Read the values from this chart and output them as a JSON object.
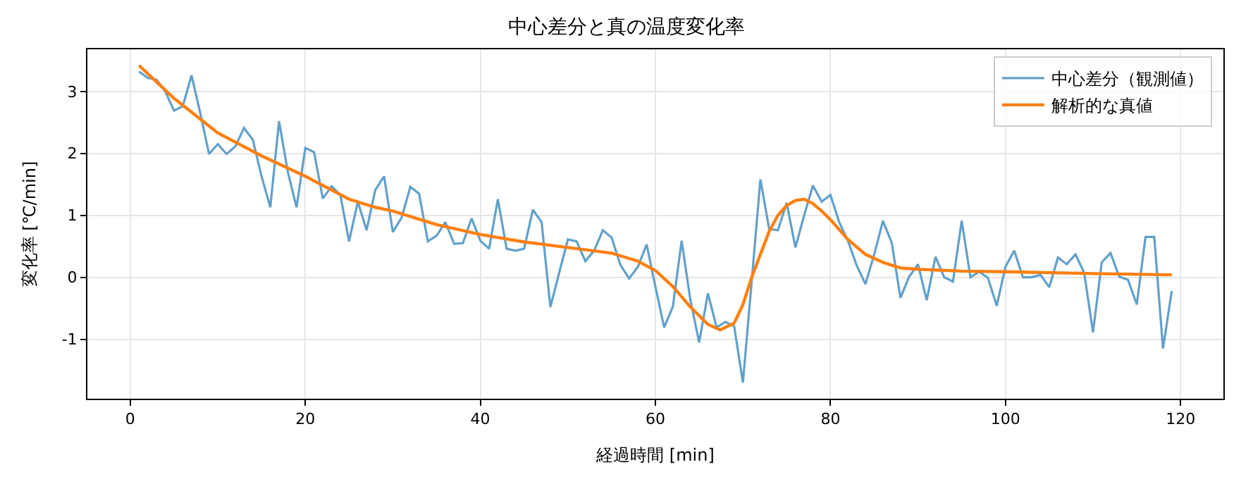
{
  "chart_data": {
    "type": "line",
    "title": "中心差分と真の温度変化率",
    "xlabel": "経過時間 [min]",
    "ylabel": "変化率 [℃/min]",
    "xlim": [
      -4.9,
      124.9
    ],
    "xticks": [
      0,
      20,
      40,
      60,
      80,
      100,
      120
    ],
    "ylim": [
      -1.96,
      3.68
    ],
    "yticks": [
      -1,
      0,
      1,
      2,
      3
    ],
    "grid": true,
    "legend": "top right",
    "series": [
      {
        "name": "中心差分（観測値）",
        "color": "#62a0cb",
        "x": [
          1,
          2,
          3,
          4,
          5,
          6,
          7,
          8,
          9,
          10,
          11,
          12,
          13,
          14,
          15,
          16,
          17,
          18,
          19,
          20,
          21,
          22,
          23,
          24,
          25,
          26,
          27,
          28,
          29,
          30,
          31,
          32,
          33,
          34,
          35,
          36,
          37,
          38,
          39,
          40,
          41,
          42,
          43,
          44,
          45,
          46,
          47,
          48,
          49,
          50,
          51,
          52,
          53,
          54,
          55,
          56,
          57,
          58,
          59,
          60,
          61,
          62,
          63,
          64,
          65,
          66,
          67,
          68,
          69,
          70,
          71,
          72,
          73,
          74,
          75,
          76,
          77,
          78,
          79,
          80,
          81,
          82,
          83,
          84,
          85,
          86,
          87,
          88,
          89,
          90,
          91,
          92,
          93,
          94,
          95,
          96,
          97,
          98,
          99,
          100,
          101,
          102,
          103,
          104,
          105,
          106,
          107,
          108,
          109,
          110,
          111,
          112,
          113,
          114,
          115,
          116,
          117,
          118,
          119
        ],
        "values": [
          3.32,
          3.22,
          3.19,
          3.0,
          2.69,
          2.76,
          3.26,
          2.65,
          1.99,
          2.15,
          1.99,
          2.11,
          2.41,
          2.22,
          1.63,
          1.13,
          2.52,
          1.7,
          1.13,
          2.09,
          2.02,
          1.27,
          1.47,
          1.33,
          0.58,
          1.22,
          0.76,
          1.41,
          1.63,
          0.73,
          0.96,
          1.46,
          1.35,
          0.58,
          0.67,
          0.89,
          0.54,
          0.55,
          0.95,
          0.59,
          0.46,
          1.26,
          0.46,
          0.43,
          0.46,
          1.09,
          0.89,
          -0.48,
          0.07,
          0.61,
          0.58,
          0.26,
          0.43,
          0.76,
          0.64,
          0.2,
          -0.02,
          0.17,
          0.53,
          -0.15,
          -0.81,
          -0.47,
          0.59,
          -0.37,
          -1.05,
          -0.26,
          -0.81,
          -0.72,
          -0.79,
          -1.7,
          -0.07,
          1.58,
          0.78,
          0.76,
          1.2,
          0.48,
          1.0,
          1.48,
          1.22,
          1.33,
          0.89,
          0.59,
          0.19,
          -0.11,
          0.37,
          0.91,
          0.56,
          -0.33,
          0.01,
          0.21,
          -0.37,
          0.33,
          0.0,
          -0.07,
          0.91,
          0.0,
          0.09,
          -0.01,
          -0.46,
          0.17,
          0.43,
          0.0,
          0.0,
          0.04,
          -0.16,
          0.32,
          0.21,
          0.37,
          0.07,
          -0.89,
          0.24,
          0.39,
          0.01,
          -0.04,
          -0.44,
          0.65,
          0.65,
          -1.15,
          -0.22
        ]
      },
      {
        "name": "解析的な真値",
        "color": "#ff7f0e",
        "x": [
          1,
          5,
          10,
          15,
          20,
          25,
          28,
          30,
          35,
          40,
          45,
          50,
          55,
          58,
          60,
          62,
          64,
          66,
          67.4,
          69,
          70,
          71,
          72,
          73,
          74,
          75,
          76,
          77,
          78,
          79,
          80,
          82,
          84,
          86,
          88,
          90,
          95,
          100,
          110,
          119
        ],
        "values": [
          3.42,
          2.89,
          2.33,
          1.96,
          1.63,
          1.26,
          1.13,
          1.07,
          0.85,
          0.69,
          0.57,
          0.48,
          0.39,
          0.26,
          0.11,
          -0.15,
          -0.48,
          -0.76,
          -0.85,
          -0.74,
          -0.44,
          0.0,
          0.37,
          0.74,
          1.0,
          1.16,
          1.24,
          1.26,
          1.19,
          1.07,
          0.93,
          0.61,
          0.37,
          0.24,
          0.15,
          0.13,
          0.1,
          0.09,
          0.06,
          0.04
        ]
      }
    ]
  }
}
